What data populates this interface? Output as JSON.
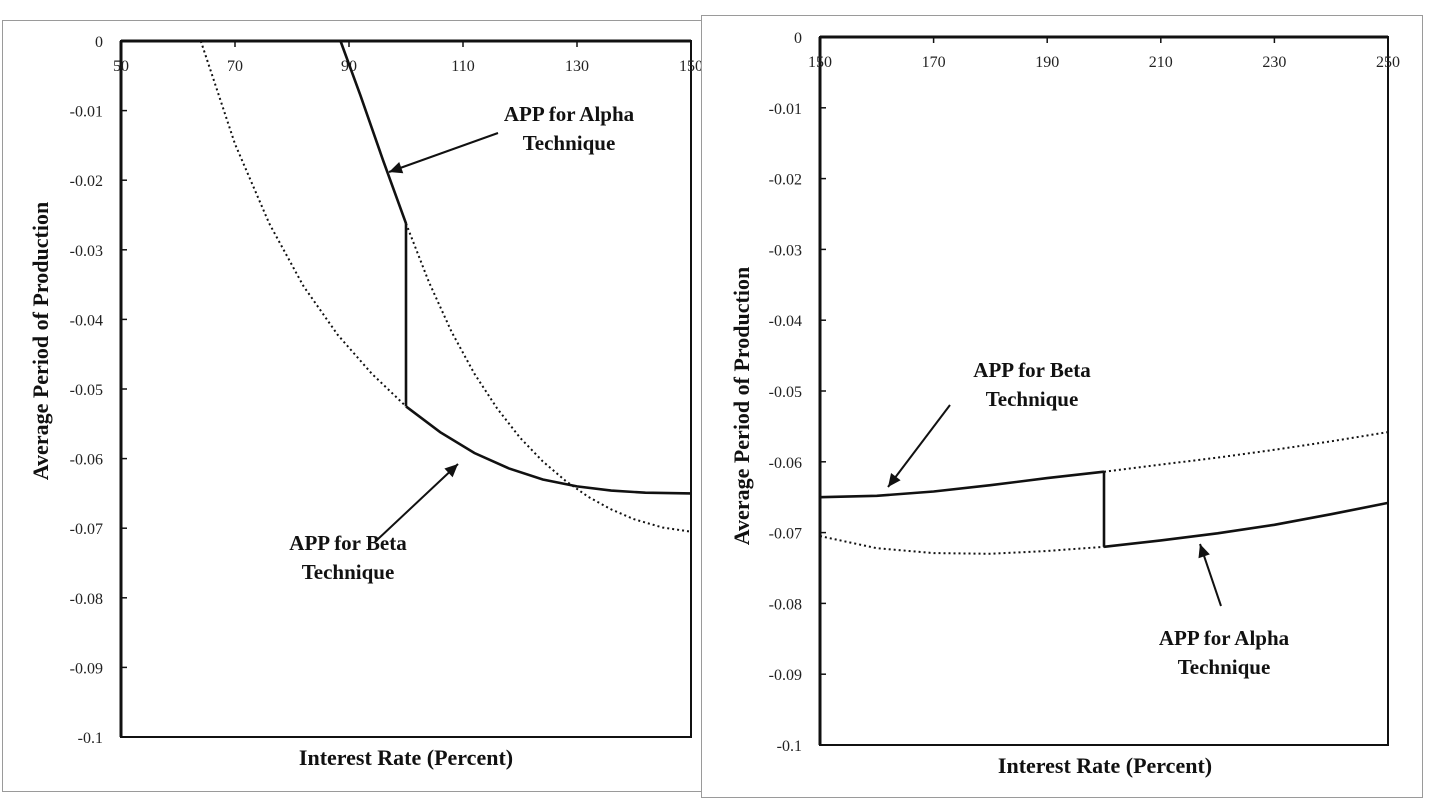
{
  "chart_data": [
    {
      "type": "line",
      "xlabel": "Interest Rate (Percent)",
      "ylabel": "Average Period of Production",
      "xlim": [
        50,
        150
      ],
      "ylim": [
        -0.1,
        0
      ],
      "xticks": [
        "50",
        "70",
        "90",
        "110",
        "130",
        "150"
      ],
      "yticks": [
        "0",
        "-0.01",
        "-0.02",
        "-0.03",
        "-0.04",
        "-0.05",
        "-0.06",
        "-0.07",
        "-0.08",
        "-0.09",
        "-0.1"
      ],
      "series": [
        {
          "name": "Alpha",
          "x": [
            88.5,
            92,
            96,
            100,
            104,
            108,
            112,
            116,
            120,
            124,
            128,
            132,
            136,
            140,
            145,
            150
          ],
          "y": [
            0,
            -0.0078,
            -0.0172,
            -0.0262,
            -0.0346,
            -0.0418,
            -0.0478,
            -0.0528,
            -0.057,
            -0.0604,
            -0.0632,
            -0.0655,
            -0.0673,
            -0.0687,
            -0.0699,
            -0.0705
          ]
        },
        {
          "name": "Beta",
          "x": [
            64,
            70,
            76,
            82,
            88,
            94,
            100,
            106,
            112,
            118,
            124,
            130,
            136,
            142,
            150
          ],
          "y": [
            0,
            -0.0148,
            -0.0262,
            -0.0352,
            -0.0422,
            -0.0478,
            -0.0525,
            -0.0562,
            -0.0592,
            -0.0614,
            -0.063,
            -0.064,
            -0.0646,
            -0.0649,
            -0.065
          ]
        }
      ],
      "switch_x": 100,
      "annotations": [
        {
          "lines": [
            "APP for Alpha",
            "Technique"
          ]
        },
        {
          "lines": [
            "APP for Beta",
            "Technique"
          ]
        }
      ]
    },
    {
      "type": "line",
      "xlabel": "Interest Rate (Percent)",
      "ylabel": "Average Period of Production",
      "xlim": [
        150,
        250
      ],
      "ylim": [
        -0.1,
        0
      ],
      "xticks": [
        "150",
        "170",
        "190",
        "210",
        "230",
        "250"
      ],
      "yticks": [
        "0",
        "-0.01",
        "-0.02",
        "-0.03",
        "-0.04",
        "-0.05",
        "-0.06",
        "-0.07",
        "-0.08",
        "-0.09",
        "-0.1"
      ],
      "series": [
        {
          "name": "Beta",
          "x": [
            150,
            160,
            170,
            180,
            190,
            200,
            210,
            220,
            230,
            240,
            250
          ],
          "y": [
            -0.065,
            -0.0648,
            -0.0642,
            -0.0633,
            -0.0623,
            -0.0614,
            -0.0604,
            -0.0594,
            -0.0583,
            -0.0571,
            -0.0558
          ]
        },
        {
          "name": "Alpha",
          "x": [
            150,
            160,
            170,
            180,
            190,
            200,
            210,
            220,
            230,
            240,
            250
          ],
          "y": [
            -0.0705,
            -0.0722,
            -0.0729,
            -0.073,
            -0.0726,
            -0.072,
            -0.0711,
            -0.0701,
            -0.0689,
            -0.0674,
            -0.0658
          ]
        }
      ],
      "switch_x": 200,
      "annotations": [
        {
          "lines": [
            "APP for Beta",
            "Technique"
          ]
        },
        {
          "lines": [
            "APP for Alpha",
            "Technique"
          ]
        }
      ]
    }
  ],
  "colors": {
    "line": "#111111",
    "frame": "#111111",
    "panel_border": "#9a9a9a"
  }
}
